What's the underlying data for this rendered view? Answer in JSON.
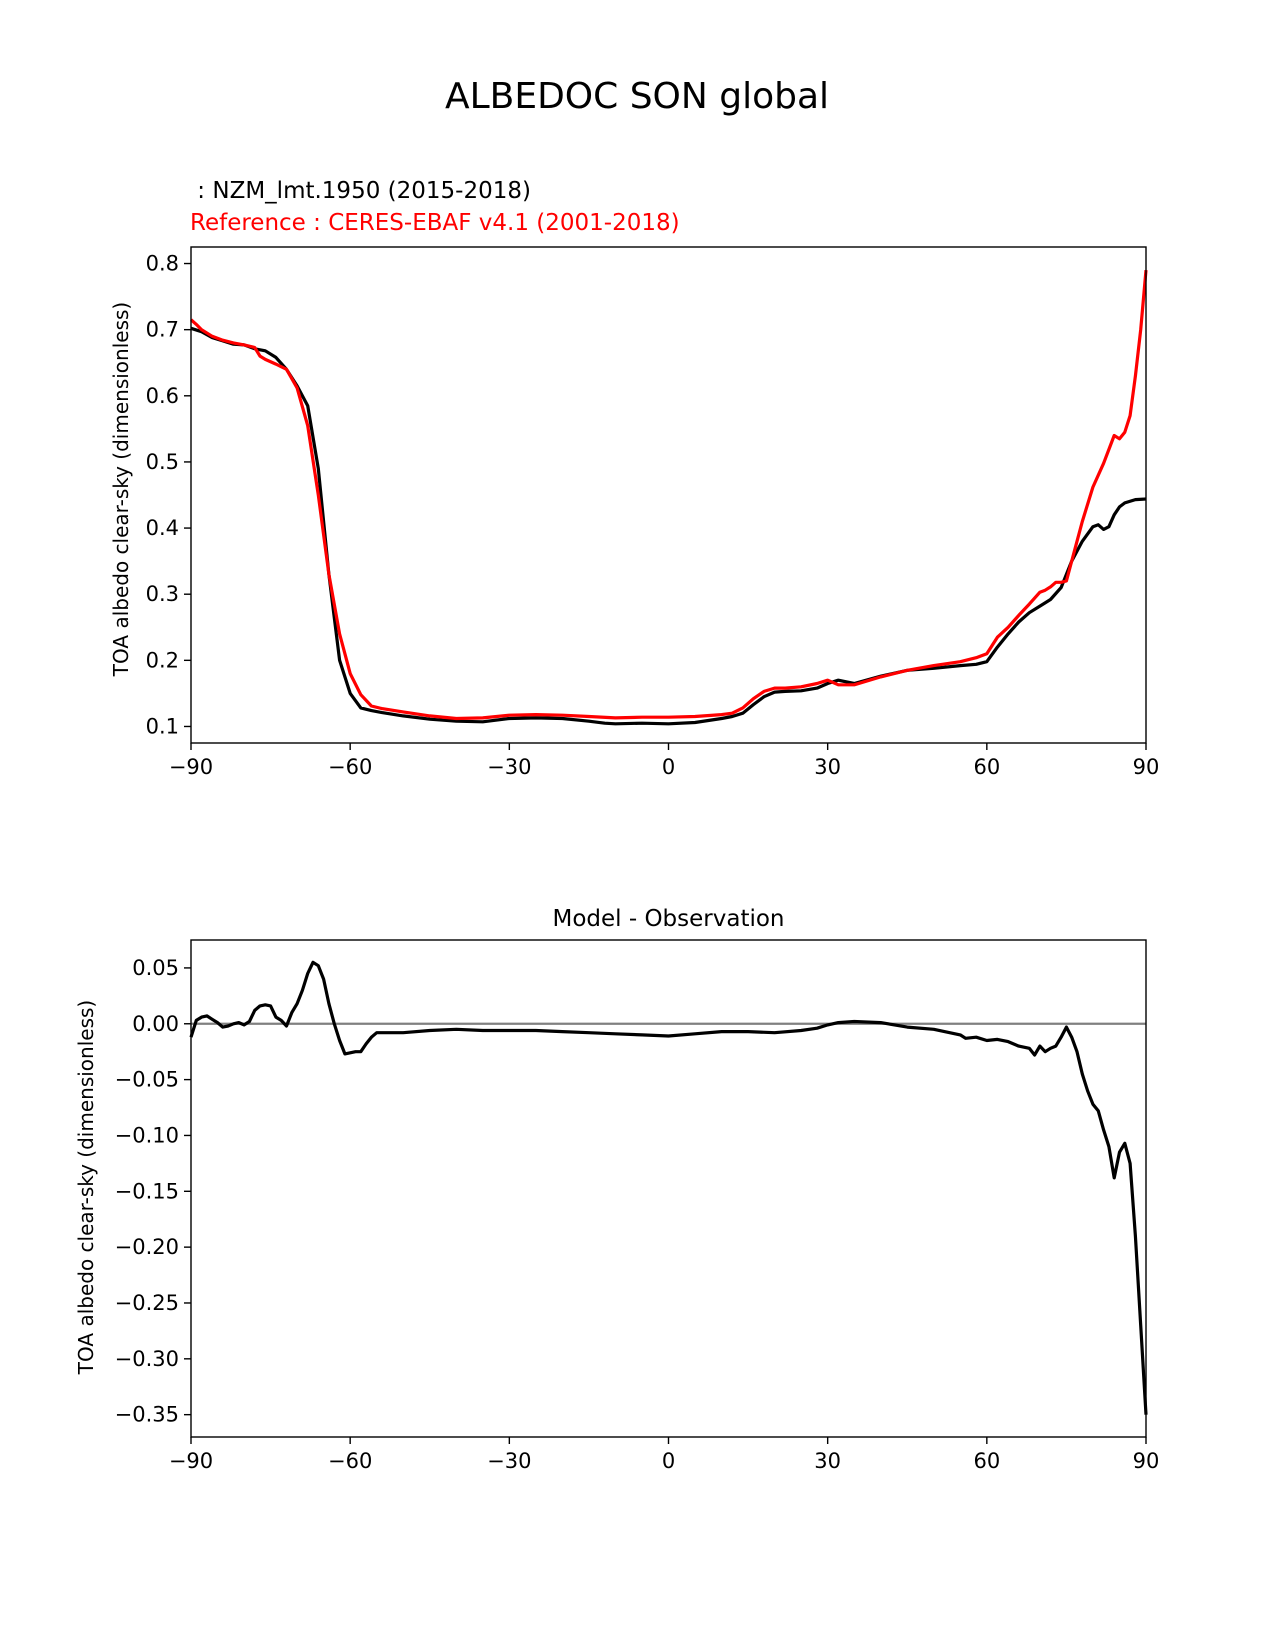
{
  "figure": {
    "title": "ALBEDOC SON global"
  },
  "chart_data": [
    {
      "type": "line",
      "subtitle_model": " : NZM_lmt.1950 (2015-2018)",
      "subtitle_reference": "Reference : CERES-EBAF v4.1 (2001-2018)",
      "xlabel": "",
      "ylabel": "TOA albedo clear-sky (dimensionless)",
      "xlim": [
        -90,
        90
      ],
      "ylim": [
        0.075,
        0.825
      ],
      "xticks": [
        -90,
        -60,
        -30,
        0,
        30,
        60,
        90
      ],
      "xtick_labels": [
        "−90",
        "−60",
        "−30",
        "0",
        "30",
        "60",
        "90"
      ],
      "yticks": [
        0.1,
        0.2,
        0.3,
        0.4,
        0.5,
        0.6,
        0.7,
        0.8
      ],
      "ytick_labels": [
        "0.1",
        "0.2",
        "0.3",
        "0.4",
        "0.5",
        "0.6",
        "0.7",
        "0.8"
      ],
      "grid": false,
      "series": [
        {
          "color": "#000000",
          "x": [
            -90,
            -88,
            -86,
            -84,
            -82,
            -80,
            -78,
            -76,
            -74,
            -72,
            -70,
            -68,
            -66,
            -64,
            -62,
            -60,
            -58,
            -56,
            -54,
            -50,
            -45,
            -40,
            -35,
            -30,
            -25,
            -20,
            -15,
            -12,
            -10,
            -5,
            0,
            5,
            10,
            12,
            14,
            16,
            18,
            20,
            22,
            25,
            28,
            30,
            32,
            35,
            40,
            45,
            50,
            55,
            58,
            60,
            62,
            64,
            66,
            68,
            70,
            72,
            74,
            76,
            78,
            80,
            81,
            82,
            83,
            84,
            85,
            86,
            88,
            90
          ],
          "values": [
            0.702,
            0.697,
            0.688,
            0.683,
            0.678,
            0.677,
            0.671,
            0.668,
            0.658,
            0.64,
            0.615,
            0.585,
            0.49,
            0.33,
            0.2,
            0.15,
            0.128,
            0.124,
            0.121,
            0.116,
            0.111,
            0.108,
            0.107,
            0.112,
            0.113,
            0.112,
            0.108,
            0.105,
            0.104,
            0.105,
            0.104,
            0.106,
            0.112,
            0.115,
            0.12,
            0.133,
            0.145,
            0.152,
            0.153,
            0.154,
            0.158,
            0.165,
            0.17,
            0.165,
            0.176,
            0.185,
            0.188,
            0.192,
            0.194,
            0.198,
            0.22,
            0.24,
            0.258,
            0.272,
            0.282,
            0.292,
            0.31,
            0.35,
            0.38,
            0.402,
            0.405,
            0.398,
            0.402,
            0.42,
            0.432,
            0.438,
            0.443,
            0.444
          ]
        },
        {
          "color": "#ff0000",
          "x": [
            -90,
            -89,
            -88,
            -86,
            -84,
            -82,
            -80,
            -78,
            -77,
            -76,
            -74,
            -72,
            -70,
            -68,
            -66,
            -64,
            -62,
            -60,
            -58,
            -56,
            -54,
            -50,
            -45,
            -40,
            -35,
            -30,
            -25,
            -20,
            -15,
            -10,
            -5,
            0,
            5,
            10,
            12,
            14,
            16,
            18,
            20,
            22,
            25,
            28,
            30,
            32,
            35,
            40,
            45,
            50,
            55,
            58,
            60,
            62,
            64,
            66,
            68,
            70,
            71,
            72,
            73,
            74,
            75,
            76,
            77,
            78,
            80,
            82,
            84,
            85,
            86,
            87,
            88,
            89,
            90
          ],
          "values": [
            0.715,
            0.708,
            0.7,
            0.69,
            0.684,
            0.68,
            0.677,
            0.673,
            0.66,
            0.655,
            0.648,
            0.64,
            0.612,
            0.555,
            0.45,
            0.33,
            0.24,
            0.18,
            0.148,
            0.131,
            0.127,
            0.122,
            0.116,
            0.112,
            0.113,
            0.117,
            0.118,
            0.117,
            0.115,
            0.113,
            0.114,
            0.114,
            0.115,
            0.118,
            0.12,
            0.128,
            0.142,
            0.153,
            0.158,
            0.158,
            0.16,
            0.165,
            0.17,
            0.163,
            0.163,
            0.175,
            0.185,
            0.192,
            0.198,
            0.204,
            0.21,
            0.235,
            0.25,
            0.268,
            0.285,
            0.303,
            0.306,
            0.311,
            0.318,
            0.318,
            0.32,
            0.35,
            0.38,
            0.41,
            0.462,
            0.498,
            0.54,
            0.535,
            0.545,
            0.57,
            0.63,
            0.7,
            0.79
          ]
        }
      ]
    },
    {
      "type": "line",
      "title": "Model - Observation",
      "xlabel": "",
      "ylabel": "TOA albedo clear-sky (dimensionless)",
      "xlim": [
        -90,
        90
      ],
      "ylim": [
        -0.37,
        0.075
      ],
      "xticks": [
        -90,
        -60,
        -30,
        0,
        30,
        60,
        90
      ],
      "xtick_labels": [
        "−90",
        "−60",
        "−30",
        "0",
        "30",
        "60",
        "90"
      ],
      "yticks": [
        0.05,
        0.0,
        -0.05,
        -0.1,
        -0.15,
        -0.2,
        -0.25,
        -0.3,
        -0.35
      ],
      "ytick_labels": [
        "0.05",
        "0.00",
        "−0.05",
        "−0.10",
        "−0.15",
        "−0.20",
        "−0.25",
        "−0.30",
        "−0.35"
      ],
      "zero_line": true,
      "grid": false,
      "series": [
        {
          "color": "#000000",
          "x": [
            -90,
            -89,
            -88,
            -87,
            -86,
            -85,
            -84,
            -83,
            -82,
            -81,
            -80,
            -79,
            -78,
            -77,
            -76,
            -75,
            -74,
            -73,
            -72,
            -71,
            -70,
            -69,
            -68,
            -67,
            -66,
            -65,
            -64,
            -63,
            -62,
            -61,
            -60,
            -59,
            -58,
            -57,
            -56,
            -55,
            -54,
            -50,
            -45,
            -40,
            -35,
            -30,
            -25,
            -20,
            -15,
            -10,
            -5,
            0,
            5,
            10,
            15,
            20,
            25,
            28,
            30,
            32,
            35,
            40,
            45,
            50,
            55,
            56,
            58,
            60,
            62,
            64,
            66,
            68,
            69,
            70,
            71,
            72,
            73,
            74,
            75,
            76,
            77,
            78,
            79,
            80,
            81,
            82,
            83,
            84,
            85,
            86,
            87,
            88,
            89,
            90
          ],
          "values": [
            -0.012,
            0.003,
            0.006,
            0.007,
            0.004,
            0.001,
            -0.003,
            -0.002,
            0.0,
            0.001,
            -0.001,
            0.002,
            0.012,
            0.016,
            0.017,
            0.016,
            0.006,
            0.003,
            -0.002,
            0.01,
            0.018,
            0.03,
            0.045,
            0.055,
            0.052,
            0.04,
            0.018,
            0.0,
            -0.015,
            -0.027,
            -0.026,
            -0.025,
            -0.025,
            -0.018,
            -0.012,
            -0.008,
            -0.008,
            -0.008,
            -0.006,
            -0.005,
            -0.006,
            -0.006,
            -0.006,
            -0.007,
            -0.008,
            -0.009,
            -0.01,
            -0.011,
            -0.009,
            -0.007,
            -0.007,
            -0.008,
            -0.006,
            -0.004,
            -0.001,
            0.001,
            0.002,
            0.001,
            -0.003,
            -0.005,
            -0.01,
            -0.013,
            -0.012,
            -0.015,
            -0.014,
            -0.016,
            -0.02,
            -0.022,
            -0.028,
            -0.02,
            -0.025,
            -0.022,
            -0.02,
            -0.012,
            -0.003,
            -0.012,
            -0.025,
            -0.045,
            -0.06,
            -0.072,
            -0.078,
            -0.095,
            -0.11,
            -0.138,
            -0.115,
            -0.107,
            -0.125,
            -0.19,
            -0.27,
            -0.35
          ]
        }
      ]
    }
  ]
}
